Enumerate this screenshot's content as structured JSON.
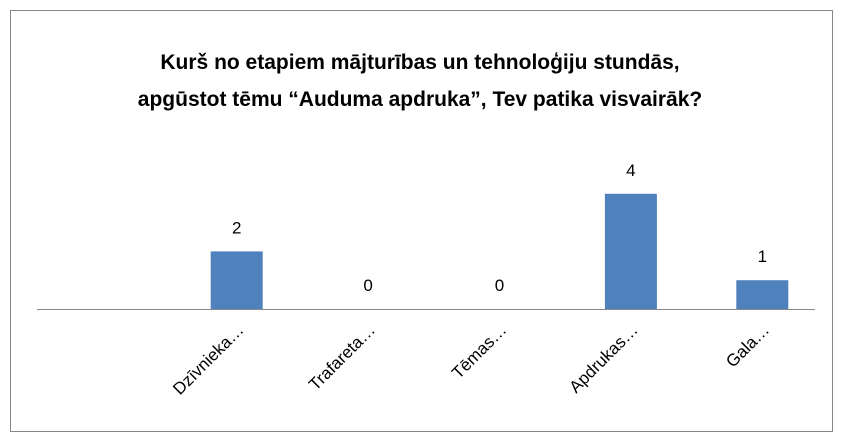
{
  "chart_data": {
    "type": "bar",
    "title": "Kurš no etapiem mājturības un tehnoloģiju stundās, apgūstot tēmu “Auduma apdruka”, Tev patika visvairāk?",
    "categories": [
      "Dzīvnieka…",
      "Trafareta…",
      "Tēmas…",
      "Apdrukas…",
      "Gala…"
    ],
    "values": [
      2,
      0,
      0,
      4,
      1
    ],
    "color": "#4f81bd",
    "ylim": [
      0,
      5
    ]
  }
}
